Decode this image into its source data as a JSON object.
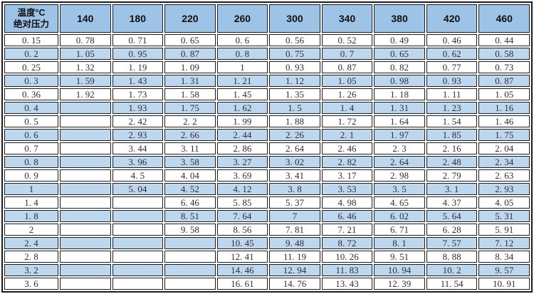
{
  "colors": {
    "header_bg": "#9dc3e6",
    "row_alt_bg": "#bdd7ee",
    "row_bg": "#ffffff",
    "border": "#1c1c1c",
    "text": "#2f2f2f"
  },
  "table": {
    "corner_header": {
      "line1": "温度°C",
      "line2": "绝对压力"
    },
    "columns": [
      "140",
      "180",
      "220",
      "260",
      "300",
      "340",
      "380",
      "420",
      "460"
    ],
    "rows": [
      {
        "pressure": "0.15",
        "values": [
          "0.78",
          "0.71",
          "0.65",
          "0.6",
          "0.56",
          "0.52",
          "0.49",
          "0.46",
          "0.44"
        ]
      },
      {
        "pressure": "0.2",
        "values": [
          "1.05",
          "0.95",
          "0.87",
          "0.8",
          "0.75",
          "0.7",
          "0.65",
          "0.62",
          "0.58"
        ]
      },
      {
        "pressure": "0.25",
        "values": [
          "1.32",
          "1.19",
          "1.09",
          "1",
          "0.93",
          "0.87",
          "0.82",
          "0.77",
          "0.73"
        ]
      },
      {
        "pressure": "0.3",
        "values": [
          "1.59",
          "1.43",
          "1.31",
          "1.21",
          "1.12",
          "1.05",
          "0.98",
          "0.93",
          "0.87"
        ]
      },
      {
        "pressure": "0.36",
        "values": [
          "1.92",
          "1.73",
          "1.58",
          "1.45",
          "1.35",
          "1.26",
          "1.18",
          "1.11",
          "1.05"
        ]
      },
      {
        "pressure": "0.4",
        "values": [
          "",
          "1.93",
          "1.75",
          "1.62",
          "1.5",
          "1.4",
          "1.31",
          "1.23",
          "1.16"
        ]
      },
      {
        "pressure": "0.5",
        "values": [
          "",
          "2.42",
          "2.2",
          "1.99",
          "1.88",
          "1.72",
          "1.64",
          "1.54",
          "1.46"
        ]
      },
      {
        "pressure": "0.6",
        "values": [
          "",
          "2.93",
          "2.66",
          "2.44",
          "2.26",
          "2.1",
          "1.97",
          "1.85",
          "1.75"
        ]
      },
      {
        "pressure": "0.7",
        "values": [
          "",
          "3.44",
          "3.11",
          "2.86",
          "2.64",
          "2.46",
          "2.3",
          "2.16",
          "2.04"
        ]
      },
      {
        "pressure": "0.8",
        "values": [
          "",
          "3.96",
          "3.58",
          "3.27",
          "3.02",
          "2.82",
          "2.64",
          "2.48",
          "2.34"
        ]
      },
      {
        "pressure": "0.9",
        "values": [
          "",
          "4.5",
          "4.04",
          "3.69",
          "3.41",
          "3.17",
          "2.98",
          "2.79",
          "2.63"
        ]
      },
      {
        "pressure": "1",
        "values": [
          "",
          "5.04",
          "4.52",
          "4.12",
          "3.8",
          "3.53",
          "3.5",
          "3.1",
          "2.93"
        ]
      },
      {
        "pressure": "1.4",
        "values": [
          "",
          "",
          "6.46",
          "5.85",
          "5.37",
          "4.98",
          "4.65",
          "4.37",
          "4.05"
        ]
      },
      {
        "pressure": "1.8",
        "values": [
          "",
          "",
          "8.51",
          "7.64",
          "7",
          "6.46",
          "6.02",
          "5.64",
          "5.31"
        ]
      },
      {
        "pressure": "2",
        "values": [
          "",
          "",
          "9.58",
          "8.56",
          "7.81",
          "7.21",
          "6.71",
          "6.28",
          "5.91"
        ]
      },
      {
        "pressure": "2.4",
        "values": [
          "",
          "",
          "",
          "10.45",
          "9.48",
          "8.72",
          "8.1",
          "7.57",
          "7.12"
        ]
      },
      {
        "pressure": "2.8",
        "values": [
          "",
          "",
          "",
          "12.41",
          "11.19",
          "10.26",
          "9.51",
          "8.88",
          "8.34"
        ]
      },
      {
        "pressure": "3.2",
        "values": [
          "",
          "",
          "",
          "14.46",
          "12.94",
          "11.83",
          "10.94",
          "10.2",
          "9.57"
        ]
      },
      {
        "pressure": "3.6",
        "values": [
          "",
          "",
          "",
          "16.61",
          "14.76",
          "13.43",
          "12.39",
          "11.54",
          "10.91"
        ]
      }
    ]
  }
}
